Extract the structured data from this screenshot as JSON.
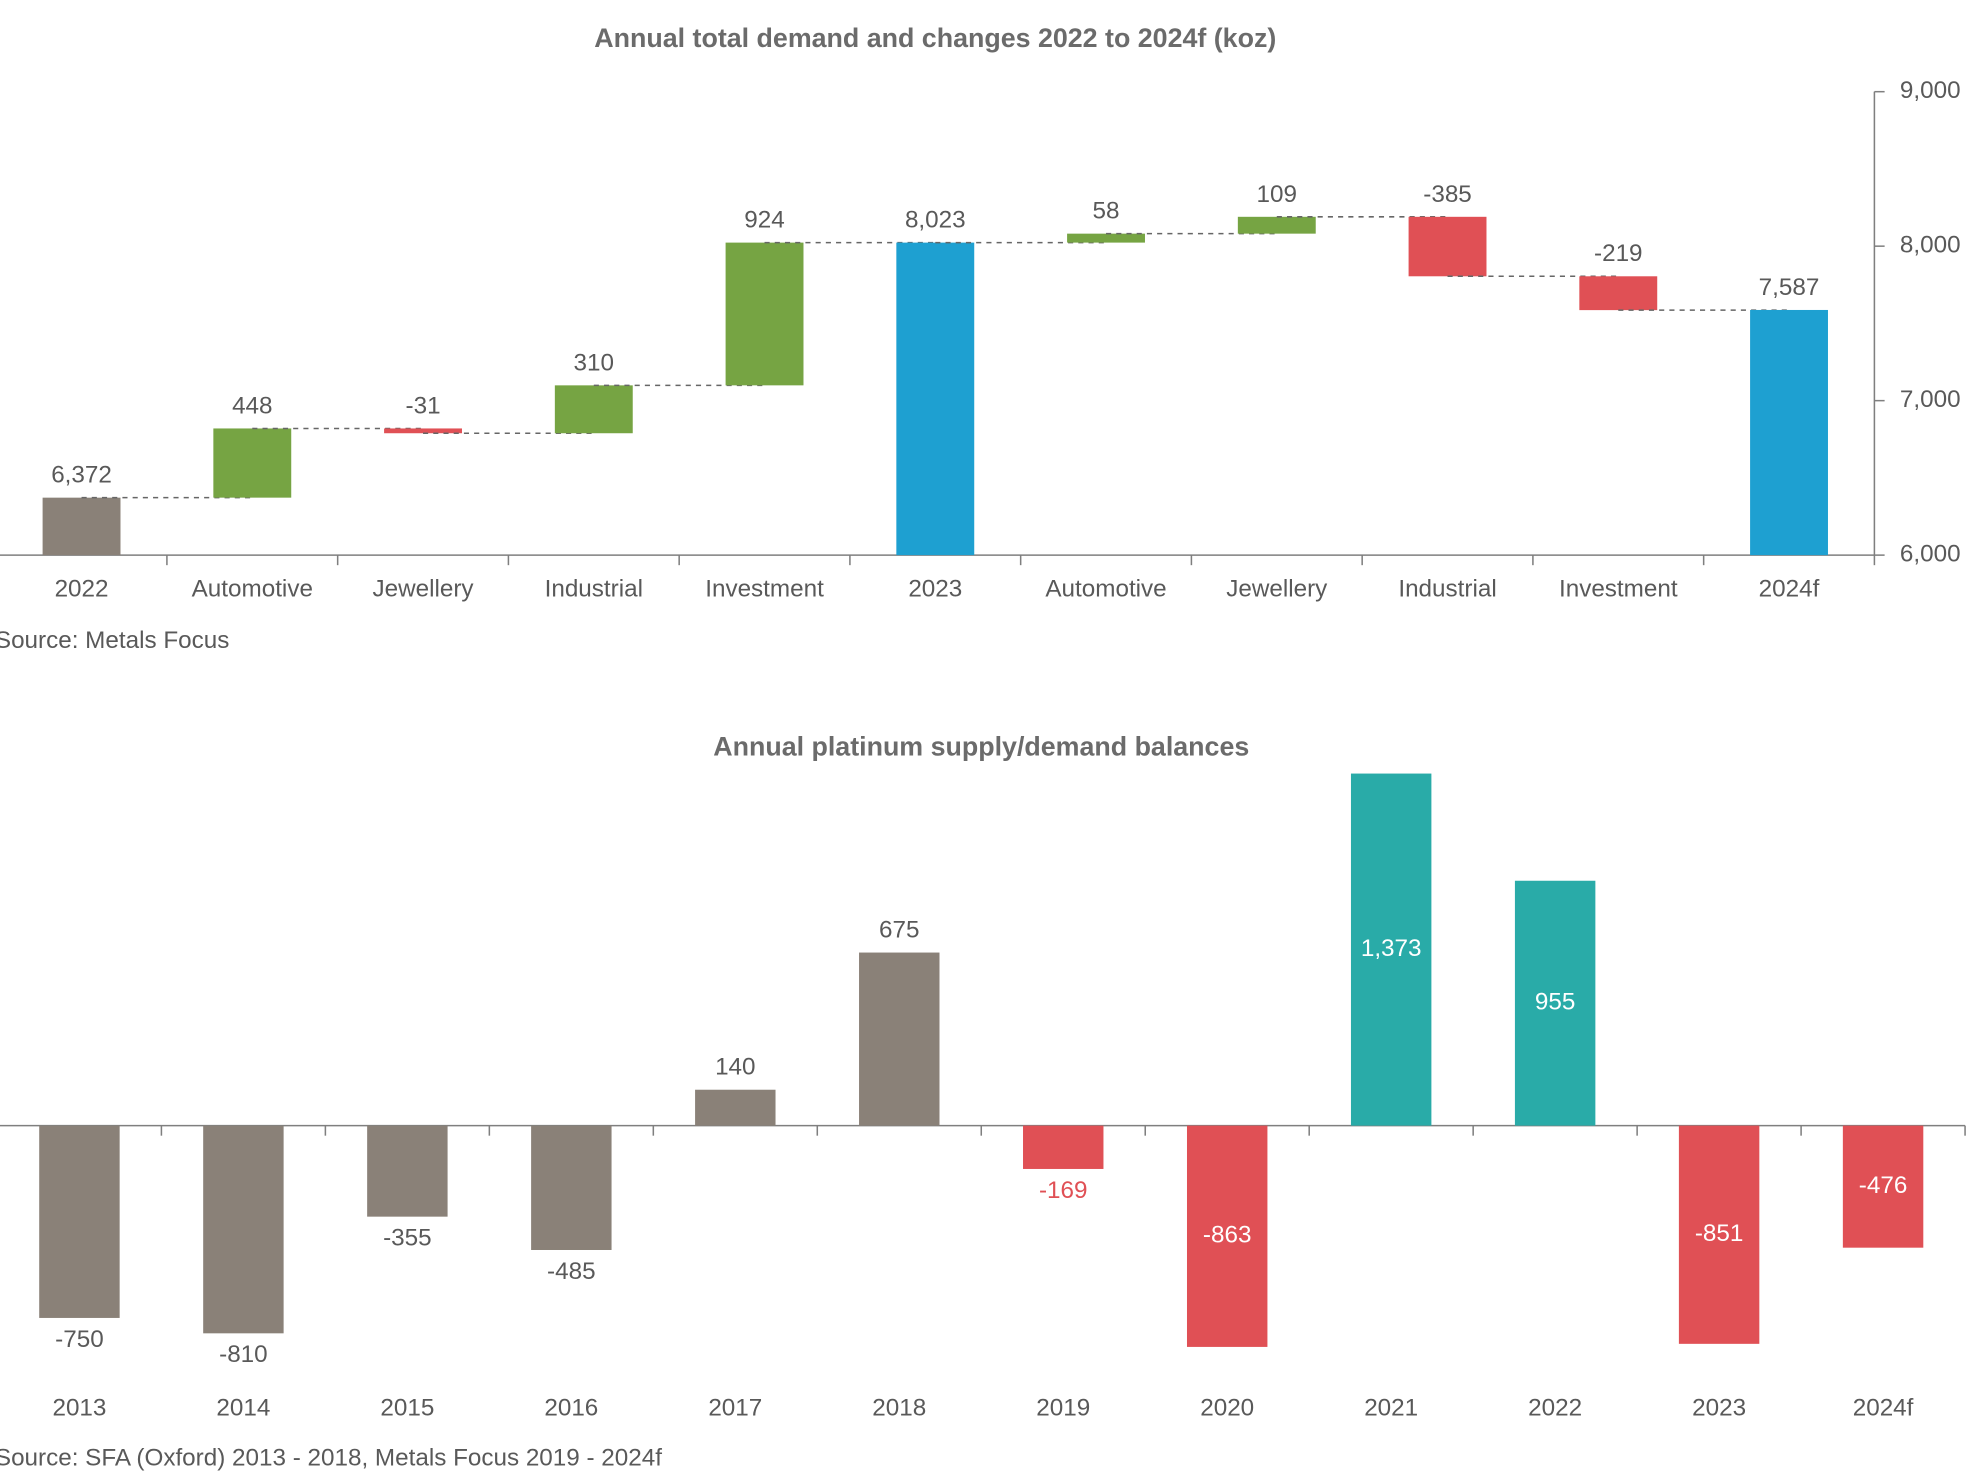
{
  "chart_data": [
    {
      "type": "waterfall",
      "title": "Annual total demand and changes 2022 to 2024f (koz)",
      "source": "Source: Metals Focus",
      "categories": [
        "2022",
        "Automotive",
        "Jewellery",
        "Industrial",
        "Investment",
        "2023",
        "Automotive",
        "Jewellery",
        "Industrial",
        "Investment",
        "2024f"
      ],
      "values": [
        6372,
        448,
        -31,
        310,
        924,
        8023,
        58,
        109,
        -385,
        -219,
        7587
      ],
      "value_labels": [
        "6,372",
        "448",
        "-31",
        "310",
        "924",
        "8,023",
        "58",
        "109",
        "-385",
        "-219",
        "7,587"
      ],
      "colors": [
        "#8a8178",
        "#76a443",
        "#e05055",
        "#76a443",
        "#76a443",
        "#1ea0d1",
        "#76a443",
        "#76a443",
        "#e05055",
        "#e05055",
        "#1ea0d1"
      ],
      "ylim": [
        6000,
        9000
      ],
      "yticks": [
        {
          "value": 6000,
          "label": "6,000"
        },
        {
          "value": 7000,
          "label": "7,000"
        },
        {
          "value": 8000,
          "label": "8,000"
        },
        {
          "value": 9000,
          "label": "9,000"
        }
      ],
      "y_axis_side": "right"
    },
    {
      "type": "bar",
      "title": "Annual platinum supply/demand balances",
      "source": "Source: SFA (Oxford) 2013 - 2018, Metals Focus 2019 - 2024f",
      "categories": [
        "2013",
        "2014",
        "2015",
        "2016",
        "2017",
        "2018",
        "2019",
        "2020",
        "2021",
        "2022",
        "2023",
        "2024f"
      ],
      "values": [
        -750,
        -810,
        -355,
        -485,
        140,
        675,
        -169,
        -863,
        1373,
        955,
        -851,
        -476
      ],
      "value_labels": [
        "-750",
        "-810",
        "-355",
        "-485",
        "140",
        "675",
        "-169",
        "-863",
        "1,373",
        "955",
        "-851",
        "-476"
      ],
      "colors": [
        "#8a8178",
        "#8a8178",
        "#8a8178",
        "#8a8178",
        "#8a8178",
        "#8a8178",
        "#e05055",
        "#e05055",
        "#29aba8",
        "#29aba8",
        "#e05055",
        "#e05055"
      ],
      "ylim": [
        -900,
        1500
      ]
    }
  ]
}
